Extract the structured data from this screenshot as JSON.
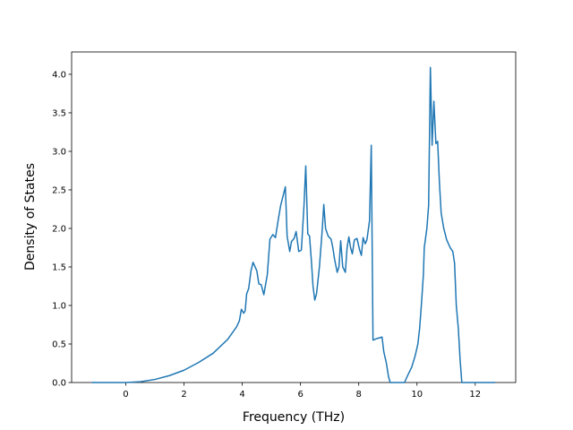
{
  "chart_data": {
    "type": "line",
    "x_label": "Frequency (THz)",
    "y_label": "Density of States",
    "x": [
      -1.17,
      0,
      0.5,
      1,
      1.5,
      2,
      2.5,
      3,
      3.5,
      3.8,
      3.9,
      3.97,
      4.05,
      4.1,
      4.15,
      4.22,
      4.3,
      4.37,
      4.5,
      4.57,
      4.65,
      4.74,
      4.86,
      4.95,
      5.05,
      5.14,
      5.23,
      5.32,
      5.48,
      5.54,
      5.63,
      5.69,
      5.78,
      5.85,
      5.94,
      6.03,
      6.12,
      6.18,
      6.25,
      6.31,
      6.37,
      6.43,
      6.49,
      6.55,
      6.65,
      6.74,
      6.8,
      6.86,
      6.95,
      7.05,
      7.11,
      7.17,
      7.26,
      7.32,
      7.38,
      7.45,
      7.54,
      7.6,
      7.66,
      7.72,
      7.78,
      7.85,
      7.94,
      8.03,
      8.09,
      8.15,
      8.22,
      8.28,
      8.37,
      8.43,
      8.49,
      8.62,
      8.8,
      8.86,
      8.95,
      9.02,
      9.08,
      9.57,
      9.69,
      9.82,
      9.94,
      10.03,
      10.09,
      10.15,
      10.22,
      10.25,
      10.34,
      10.4,
      10.46,
      10.52,
      10.58,
      10.65,
      10.71,
      10.77,
      10.83,
      10.92,
      11.02,
      11.14,
      11.23,
      11.29,
      11.35,
      11.42,
      11.48,
      11.54,
      12.68
    ],
    "series": [
      {
        "color": "#1f77b4",
        "values": [
          0,
          0,
          0.01,
          0.04,
          0.09,
          0.16,
          0.26,
          0.38,
          0.56,
          0.72,
          0.8,
          0.95,
          0.9,
          0.93,
          1.15,
          1.22,
          1.45,
          1.56,
          1.45,
          1.28,
          1.27,
          1.14,
          1.4,
          1.86,
          1.92,
          1.88,
          2.1,
          2.3,
          2.54,
          1.9,
          1.7,
          1.83,
          1.87,
          1.96,
          1.7,
          1.72,
          2.3,
          2.81,
          1.93,
          1.9,
          1.6,
          1.25,
          1.07,
          1.15,
          1.5,
          1.95,
          2.31,
          2.0,
          1.9,
          1.86,
          1.75,
          1.6,
          1.43,
          1.5,
          1.84,
          1.5,
          1.43,
          1.75,
          1.89,
          1.75,
          1.67,
          1.85,
          1.87,
          1.72,
          1.65,
          1.88,
          1.8,
          1.85,
          2.1,
          3.08,
          0.55,
          0.57,
          0.59,
          0.4,
          0.25,
          0.08,
          0,
          0,
          0.1,
          0.2,
          0.35,
          0.5,
          0.7,
          1.0,
          1.4,
          1.75,
          2.0,
          2.3,
          4.09,
          3.08,
          3.65,
          3.1,
          3.13,
          2.6,
          2.2,
          2.0,
          1.85,
          1.75,
          1.7,
          1.55,
          1.0,
          0.7,
          0.3,
          0,
          0
        ]
      }
    ],
    "xlim": [
      -1.86,
      13.39
    ],
    "ylim": [
      0,
      4.29
    ],
    "xticks": [
      0,
      2,
      4,
      6,
      8,
      10,
      12
    ],
    "yticks": [
      {
        "value": 0,
        "label": "0.0"
      },
      {
        "value": 0.5,
        "label": "0.5"
      },
      {
        "value": 1,
        "label": "1.0"
      },
      {
        "value": 1.5,
        "label": "1.5"
      },
      {
        "value": 2,
        "label": "2.0"
      },
      {
        "value": 2.5,
        "label": "2.5"
      },
      {
        "value": 3,
        "label": "3.0"
      },
      {
        "value": 3.5,
        "label": "3.5"
      },
      {
        "value": 4,
        "label": "4.0"
      }
    ],
    "grid": false
  }
}
